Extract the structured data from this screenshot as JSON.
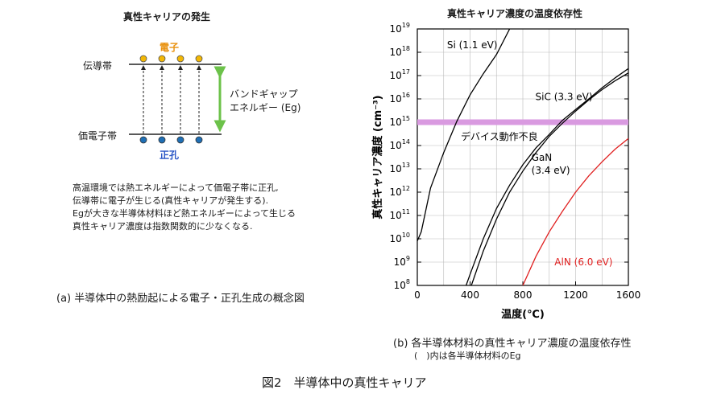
{
  "figure_caption": "図2　半導体中の真性キャリア",
  "panel_a": {
    "title": "真性キャリアの発生",
    "conduction_band_label": "伝導帯",
    "valence_band_label": "価電子帯",
    "electron_label": "電子",
    "hole_label": "正孔",
    "bandgap_label_line1": "バンドギャップ",
    "bandgap_label_line2": "エネルギー (Eg)",
    "explanation": [
      "高温環境では熱エネルギーによって価電子帯に正孔,",
      "伝導帯に電子が生じる(真性キャリアが発生する).",
      "Egが大きな半導体材料ほど熱エネルギーによって生じる",
      "真性キャリア濃度は指数関数的に少なくなる."
    ],
    "caption": "(a) 半導体中の熱励起による電子・正孔生成の概念図",
    "colors": {
      "electron": "#f2b705",
      "hole": "#1f6fb5",
      "hole_label": "#2a56c6",
      "electron_label": "#e8900c",
      "arrow": "#6cc24a"
    }
  },
  "chart_data": {
    "type": "line",
    "title": "真性キャリア濃度の温度依存性",
    "xlabel": "温度(℃)",
    "ylabel": "真性キャリア濃度 (cm⁻³)",
    "xlim": [
      0,
      1600
    ],
    "ylim": [
      100000000.0,
      1e+19
    ],
    "y_scale": "log",
    "x_ticks": [
      "0",
      "400",
      "800",
      "1200",
      "1600"
    ],
    "y_ticks": [
      "8",
      "9",
      "10",
      "11",
      "12",
      "13",
      "14",
      "15",
      "16",
      "17",
      "18",
      "19"
    ],
    "y_tick_base": "10",
    "grid": true,
    "threshold": {
      "label": "デバイス動作不良",
      "y": 1000000000000000.0,
      "color": "#d99ae0"
    },
    "series": [
      {
        "name": "Si (1.1 eV)",
        "color": "#000000",
        "x": [
          0,
          30,
          100,
          200,
          300,
          400,
          500,
          600,
          700
        ],
        "y": [
          8000000000.0,
          20000000000.0,
          1500000000000.0,
          50000000000000.0,
          1100000000000000.0,
          1.5e+16,
          1.2e+17,
          8e+17,
          1e+19
        ]
      },
      {
        "name": "SiC (3.3 eV)",
        "color": "#000000",
        "x": [
          370,
          400,
          500,
          600,
          700,
          800,
          900,
          1000,
          1100,
          1200,
          1300,
          1400,
          1500,
          1600
        ],
        "y": [
          100000000.0,
          300000000.0,
          10000000000.0,
          200000000000.0,
          2000000000000.0,
          15000000000000.0,
          80000000000000.0,
          300000000000000.0,
          1200000000000000.0,
          3500000000000000.0,
          1e+16,
          3e+16,
          8e+16,
          2e+17
        ]
      },
      {
        "name": "GaN",
        "name2": "(3.4 eV)",
        "color": "#000000",
        "x": [
          410,
          500,
          600,
          700,
          800,
          900,
          1000,
          1100,
          1200,
          1300,
          1400,
          1500,
          1600
        ],
        "y": [
          100000000.0,
          3000000000.0,
          70000000000.0,
          1000000000000.0,
          8000000000000.0,
          50000000000000.0,
          250000000000000.0,
          900000000000000.0,
          3000000000000000.0,
          9000000000000000.0,
          2.5e+16,
          6e+16,
          1.3e+17
        ]
      },
      {
        "name": "AlN (6.0 eV)",
        "color": "#e02020",
        "x": [
          800,
          900,
          1000,
          1100,
          1200,
          1300,
          1400,
          1500,
          1600
        ],
        "y": [
          100000000.0,
          1800000000.0,
          20000000000.0,
          150000000000.0,
          1000000000000.0,
          5000000000000.0,
          20000000000000.0,
          70000000000000.0,
          200000000000000.0
        ]
      }
    ]
  },
  "panel_b_caption_line1": "(b) 各半導体材料の真性キャリア濃度の温度依存性",
  "panel_b_caption_line2": "(　)内は各半導体材料のEg"
}
